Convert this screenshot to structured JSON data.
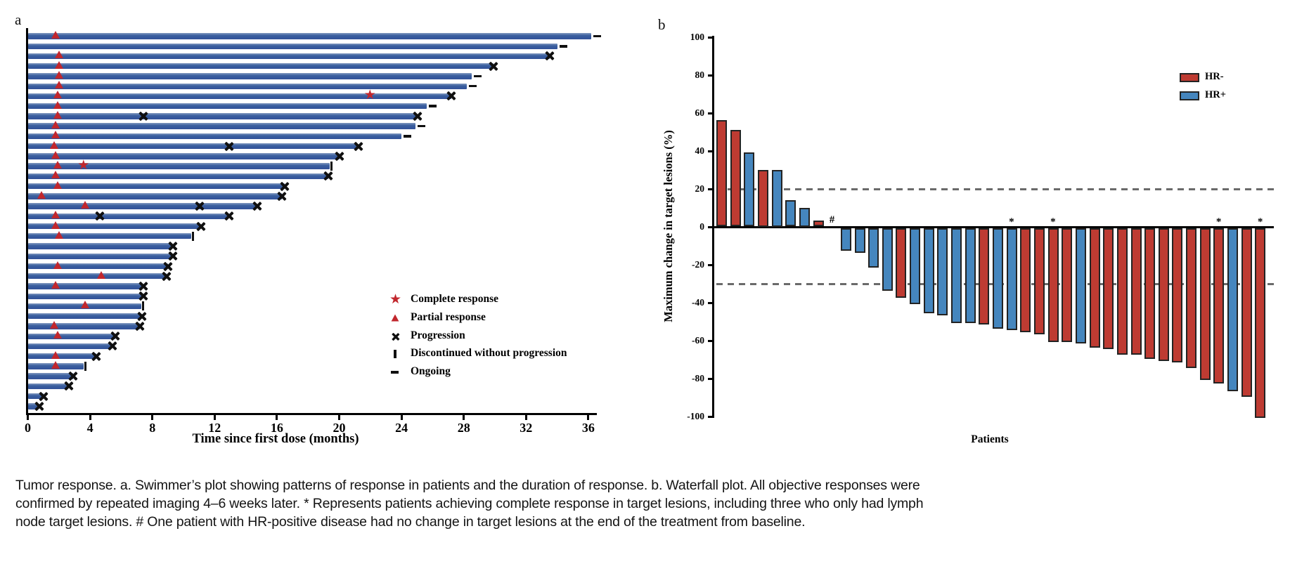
{
  "figure": {
    "panel_a_label": "a",
    "panel_b_label": "b",
    "caption_lines": [
      "Tumor response. a. Swimmer’s plot showing patterns of response in patients and the duration of response. b. Waterfall plot. All objective responses were",
      "confirmed by repeated imaging 4–6 weeks later. * Represents patients achieving complete response in target lesions, including three who only had lymph",
      "node target lesions. # One patient with HR-positive disease had no change in target lesions at the end of the treatment from baseline."
    ]
  },
  "chart_data": [
    {
      "id": "swimmer",
      "type": "bar",
      "orientation": "horizontal",
      "xlabel": "Time since first dose (months)",
      "xticks": [
        0,
        4,
        8,
        12,
        16,
        20,
        24,
        28,
        32,
        36
      ],
      "xlim": [
        0,
        36.6
      ],
      "grid": false,
      "bar_color": "#3A5F9F",
      "marker_color": "#C1272D",
      "legend_position": "lower right inside",
      "legend": [
        {
          "marker": "star",
          "label": "Complete response"
        },
        {
          "marker": "triangle",
          "label": "Partial response"
        },
        {
          "marker": "x",
          "label": "Progression"
        },
        {
          "marker": "vbar",
          "label": "Discontinued without progression"
        },
        {
          "marker": "dash",
          "label": "Ongoing"
        }
      ],
      "patients": [
        {
          "duration": 36.2,
          "partial_response": 1.8,
          "complete_response": null,
          "progression_marks": [],
          "end": "ongoing"
        },
        {
          "duration": 34.0,
          "partial_response": null,
          "complete_response": null,
          "progression_marks": [],
          "end": "ongoing"
        },
        {
          "duration": 33.5,
          "partial_response": 2.0,
          "complete_response": null,
          "progression_marks": [],
          "end": "progression"
        },
        {
          "duration": 29.9,
          "partial_response": 2.0,
          "complete_response": null,
          "progression_marks": [],
          "end": "progression"
        },
        {
          "duration": 28.5,
          "partial_response": 2.0,
          "complete_response": null,
          "progression_marks": [],
          "end": "ongoing"
        },
        {
          "duration": 28.2,
          "partial_response": 2.0,
          "complete_response": null,
          "progression_marks": [],
          "end": "ongoing"
        },
        {
          "duration": 27.2,
          "partial_response": 1.9,
          "complete_response": 22.0,
          "progression_marks": [],
          "end": "progression"
        },
        {
          "duration": 25.6,
          "partial_response": 1.9,
          "complete_response": null,
          "progression_marks": [],
          "end": "ongoing"
        },
        {
          "duration": 25.0,
          "partial_response": 1.9,
          "complete_response": null,
          "progression_marks": [
            7.4
          ],
          "end": "progression"
        },
        {
          "duration": 24.9,
          "partial_response": 1.8,
          "complete_response": null,
          "progression_marks": [],
          "end": "ongoing"
        },
        {
          "duration": 24.0,
          "partial_response": 1.8,
          "complete_response": null,
          "progression_marks": [],
          "end": "ongoing"
        },
        {
          "duration": 21.2,
          "partial_response": 1.7,
          "complete_response": null,
          "progression_marks": [
            12.9
          ],
          "end": "progression"
        },
        {
          "duration": 20.0,
          "partial_response": 1.8,
          "complete_response": null,
          "progression_marks": [],
          "end": "progression"
        },
        {
          "duration": 19.4,
          "partial_response": 1.9,
          "complete_response": 3.6,
          "progression_marks": [],
          "end": "discontinued"
        },
        {
          "duration": 19.3,
          "partial_response": 1.8,
          "complete_response": null,
          "progression_marks": [],
          "end": "progression"
        },
        {
          "duration": 16.5,
          "partial_response": 1.9,
          "complete_response": null,
          "progression_marks": [],
          "end": "progression"
        },
        {
          "duration": 16.3,
          "partial_response": 0.9,
          "complete_response": null,
          "progression_marks": [],
          "end": "progression"
        },
        {
          "duration": 14.7,
          "partial_response": 3.7,
          "complete_response": null,
          "progression_marks": [
            11.0
          ],
          "end": "progression"
        },
        {
          "duration": 12.9,
          "partial_response": 1.8,
          "complete_response": null,
          "progression_marks": [
            4.6
          ],
          "end": "progression"
        },
        {
          "duration": 11.1,
          "partial_response": 1.8,
          "complete_response": null,
          "progression_marks": [],
          "end": "progression"
        },
        {
          "duration": 10.5,
          "partial_response": 2.0,
          "complete_response": null,
          "progression_marks": [],
          "end": "discontinued"
        },
        {
          "duration": 9.3,
          "partial_response": null,
          "complete_response": null,
          "progression_marks": [],
          "end": "progression"
        },
        {
          "duration": 9.3,
          "partial_response": null,
          "complete_response": null,
          "progression_marks": [],
          "end": "progression"
        },
        {
          "duration": 9.0,
          "partial_response": 1.9,
          "complete_response": null,
          "progression_marks": [],
          "end": "progression"
        },
        {
          "duration": 8.9,
          "partial_response": 4.7,
          "complete_response": null,
          "progression_marks": [],
          "end": "progression"
        },
        {
          "duration": 7.4,
          "partial_response": 1.8,
          "complete_response": null,
          "progression_marks": [],
          "end": "progression"
        },
        {
          "duration": 7.4,
          "partial_response": null,
          "complete_response": null,
          "progression_marks": [],
          "end": "progression"
        },
        {
          "duration": 7.3,
          "partial_response": 3.7,
          "complete_response": null,
          "progression_marks": [],
          "end": "discontinued"
        },
        {
          "duration": 7.3,
          "partial_response": null,
          "complete_response": null,
          "progression_marks": [],
          "end": "progression"
        },
        {
          "duration": 7.2,
          "partial_response": 1.7,
          "complete_response": null,
          "progression_marks": [],
          "end": "progression"
        },
        {
          "duration": 5.6,
          "partial_response": 1.9,
          "complete_response": null,
          "progression_marks": [],
          "end": "progression"
        },
        {
          "duration": 5.4,
          "partial_response": null,
          "complete_response": null,
          "progression_marks": [],
          "end": "progression"
        },
        {
          "duration": 4.4,
          "partial_response": 1.8,
          "complete_response": null,
          "progression_marks": [],
          "end": "progression"
        },
        {
          "duration": 3.6,
          "partial_response": 1.8,
          "complete_response": null,
          "progression_marks": [],
          "end": "discontinued"
        },
        {
          "duration": 2.9,
          "partial_response": null,
          "complete_response": null,
          "progression_marks": [],
          "end": "progression"
        },
        {
          "duration": 2.6,
          "partial_response": null,
          "complete_response": null,
          "progression_marks": [],
          "end": "progression"
        },
        {
          "duration": 1.0,
          "partial_response": null,
          "complete_response": null,
          "progression_marks": [],
          "end": "progression"
        },
        {
          "duration": 0.7,
          "partial_response": null,
          "complete_response": null,
          "progression_marks": [],
          "end": "progression"
        }
      ]
    },
    {
      "id": "waterfall",
      "type": "bar",
      "ylabel": "Maximum change in target lesions (%)",
      "xlabel": "Patients",
      "yticks": [
        100,
        80,
        60,
        40,
        20,
        0,
        -20,
        -40,
        -60,
        -80,
        -100
      ],
      "ylim": [
        -100,
        100
      ],
      "grid": false,
      "reference_lines": [
        20,
        -30
      ],
      "legend_position": "upper right inside",
      "legend": [
        {
          "label": "HR-",
          "color": "#BE3B32"
        },
        {
          "label": "HR+",
          "color": "#4586BE"
        }
      ],
      "bars": [
        {
          "value": 56,
          "group": "HR-"
        },
        {
          "value": 51,
          "group": "HR-"
        },
        {
          "value": 39,
          "group": "HR+"
        },
        {
          "value": 30,
          "group": "HR-"
        },
        {
          "value": 30,
          "group": "HR+"
        },
        {
          "value": 14,
          "group": "HR+"
        },
        {
          "value": 10,
          "group": "HR+"
        },
        {
          "value": 3,
          "group": "HR-"
        },
        {
          "value": 0,
          "group": "HR+",
          "annotation": "#"
        },
        {
          "value": -12,
          "group": "HR+"
        },
        {
          "value": -13,
          "group": "HR+"
        },
        {
          "value": -21,
          "group": "HR+"
        },
        {
          "value": -33,
          "group": "HR+"
        },
        {
          "value": -37,
          "group": "HR-"
        },
        {
          "value": -40,
          "group": "HR+"
        },
        {
          "value": -45,
          "group": "HR+"
        },
        {
          "value": -46,
          "group": "HR+"
        },
        {
          "value": -50,
          "group": "HR+"
        },
        {
          "value": -50,
          "group": "HR+"
        },
        {
          "value": -51,
          "group": "HR-"
        },
        {
          "value": -53,
          "group": "HR+"
        },
        {
          "value": -54,
          "group": "HR+",
          "annotation": "*"
        },
        {
          "value": -55,
          "group": "HR-"
        },
        {
          "value": -56,
          "group": "HR-"
        },
        {
          "value": -60,
          "group": "HR-",
          "annotation": "*"
        },
        {
          "value": -60,
          "group": "HR-"
        },
        {
          "value": -61,
          "group": "HR+"
        },
        {
          "value": -63,
          "group": "HR-"
        },
        {
          "value": -64,
          "group": "HR-"
        },
        {
          "value": -67,
          "group": "HR-"
        },
        {
          "value": -67,
          "group": "HR-"
        },
        {
          "value": -69,
          "group": "HR-"
        },
        {
          "value": -70,
          "group": "HR-"
        },
        {
          "value": -71,
          "group": "HR-"
        },
        {
          "value": -74,
          "group": "HR-"
        },
        {
          "value": -80,
          "group": "HR-"
        },
        {
          "value": -82,
          "group": "HR-",
          "annotation": "*"
        },
        {
          "value": -86,
          "group": "HR+"
        },
        {
          "value": -89,
          "group": "HR-"
        },
        {
          "value": -100,
          "group": "HR-",
          "annotation": "*"
        }
      ]
    }
  ]
}
